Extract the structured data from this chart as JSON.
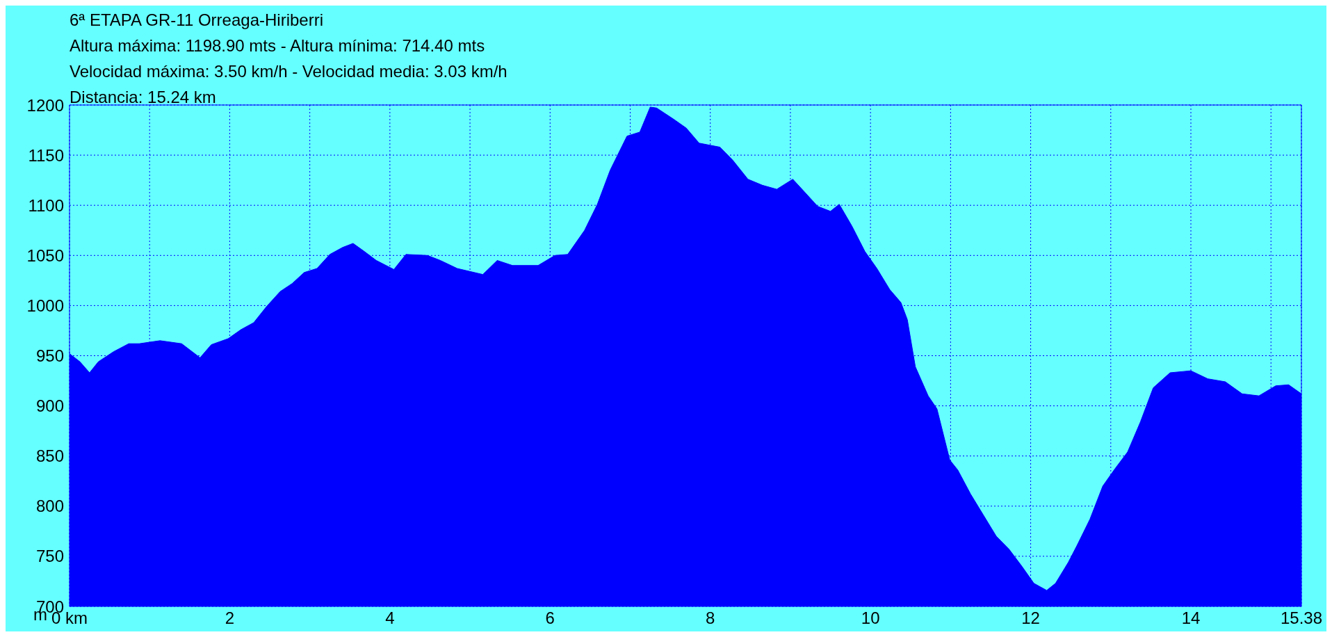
{
  "chart_data": {
    "type": "area",
    "title": "6ª ETAPA GR-11 Orreaga-Hiriberri",
    "annotations": [
      "Altura máxima: 1198.90 mts - Altura mínima: 714.40 mts",
      "Velocidad máxima: 3.50 km/h - Velocidad media: 3.03 km/h",
      "Distancia: 15.24 km"
    ],
    "ylabel": "m",
    "x": [
      0,
      0.13,
      0.25,
      0.36,
      0.55,
      0.74,
      0.87,
      1.13,
      1.4,
      1.63,
      1.77,
      1.98,
      2.14,
      2.3,
      2.46,
      2.63,
      2.78,
      2.93,
      3.09,
      3.25,
      3.41,
      3.54,
      3.68,
      3.83,
      4.05,
      4.2,
      4.47,
      4.63,
      4.84,
      5.16,
      5.34,
      5.53,
      5.85,
      6.06,
      6.22,
      6.43,
      6.59,
      6.75,
      6.96,
      7.12,
      7.25,
      7.33,
      7.54,
      7.7,
      7.86,
      8.12,
      8.28,
      8.47,
      8.65,
      8.83,
      9.03,
      9.18,
      9.34,
      9.5,
      9.61,
      9.77,
      9.93,
      10.08,
      10.24,
      10.38,
      10.46,
      10.56,
      10.72,
      10.83,
      10.99,
      11.09,
      11.25,
      11.41,
      11.57,
      11.73,
      11.89,
      12.04,
      12.2,
      12.31,
      12.47,
      12.58,
      12.74,
      12.9,
      13.05,
      13.21,
      13.37,
      13.53,
      13.74,
      14.0,
      14.21,
      14.43,
      14.64,
      14.85,
      15.06,
      15.22,
      15.38
    ],
    "series": [
      {
        "color": "#0000ff",
        "values": [
          952,
          944,
          933,
          944,
          954,
          962,
          962,
          965,
          962,
          948,
          961,
          967,
          976,
          983,
          999,
          1014,
          1022,
          1033,
          1037,
          1051,
          1058,
          1062,
          1054,
          1045,
          1036,
          1051,
          1050,
          1045,
          1037,
          1031,
          1045,
          1040,
          1040,
          1050,
          1051,
          1075,
          1101,
          1135,
          1169,
          1173,
          1198,
          1197,
          1186,
          1177,
          1162,
          1158,
          1145,
          1126,
          1120,
          1116,
          1126,
          1113,
          1099,
          1094,
          1101,
          1079,
          1054,
          1037,
          1016,
          1003,
          986,
          939,
          910,
          897,
          846,
          836,
          812,
          791,
          770,
          757,
          740,
          723,
          716,
          723,
          744,
          761,
          787,
          820,
          837,
          854,
          884,
          918,
          933,
          935,
          927,
          924,
          912,
          910,
          920,
          921,
          912
        ]
      }
    ],
    "xlim": [
      0,
      15.38
    ],
    "ylim": [
      700,
      1200
    ],
    "xticks": [
      {
        "value": 0,
        "label": "0 km"
      },
      {
        "value": 1,
        "label": null
      },
      2,
      {
        "value": 3,
        "label": null
      },
      4,
      {
        "value": 5,
        "label": null
      },
      6,
      {
        "value": 7,
        "label": null
      },
      8,
      {
        "value": 9,
        "label": null
      },
      10,
      {
        "value": 11,
        "label": null
      },
      12,
      {
        "value": 13,
        "label": null
      },
      14,
      {
        "value": 15,
        "label": null
      },
      15.38
    ],
    "yticks": [
      700,
      750,
      800,
      850,
      900,
      950,
      1000,
      1050,
      1100,
      1150,
      1200
    ],
    "grid": true
  }
}
